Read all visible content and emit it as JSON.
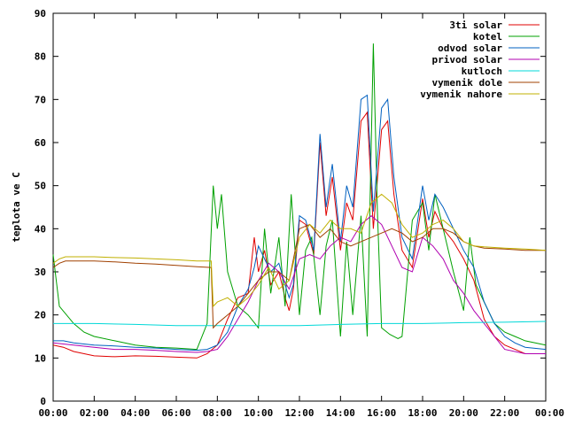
{
  "chart_data": {
    "type": "line",
    "title": "",
    "xlabel": "",
    "ylabel": "teplota ve C",
    "xlim": [
      0,
      24
    ],
    "ylim": [
      0,
      90
    ],
    "xtick_labels": [
      "00:00",
      "02:00",
      "04:00",
      "06:00",
      "08:00",
      "10:00",
      "12:00",
      "14:00",
      "16:00",
      "18:00",
      "20:00",
      "22:00",
      "00:00"
    ],
    "ytick_labels": [
      "0",
      "10",
      "20",
      "30",
      "40",
      "50",
      "60",
      "70",
      "80",
      "90"
    ],
    "grid": false,
    "legend_position": "top-right",
    "series": [
      {
        "name": "3ti solar",
        "color": "#e00000",
        "x": [
          0,
          0.5,
          1,
          2,
          3,
          4,
          5,
          6,
          7,
          7.5,
          8,
          8.5,
          9,
          9.5,
          9.8,
          10,
          10.3,
          10.6,
          11,
          11.3,
          11.5,
          11.7,
          12,
          12.3,
          12.7,
          13,
          13.3,
          13.6,
          14,
          14.3,
          14.6,
          15,
          15.3,
          15.6,
          16,
          16.3,
          16.6,
          17,
          17.5,
          18,
          18.3,
          18.6,
          19,
          19.5,
          20,
          20.5,
          21,
          21.5,
          22,
          22.5,
          23,
          24
        ],
        "y": [
          13,
          12.5,
          11.5,
          10.5,
          10.3,
          10.5,
          10.4,
          10.2,
          10,
          11,
          13,
          19,
          24,
          25,
          38,
          30,
          35,
          27,
          30,
          24,
          21,
          26,
          42,
          41,
          34,
          60,
          43,
          52,
          35,
          46,
          42,
          65,
          67,
          40,
          63,
          65,
          48,
          35,
          31,
          47,
          38,
          44,
          40,
          37,
          33,
          28,
          19,
          15,
          13,
          12,
          11,
          11
        ]
      },
      {
        "name": "kotel",
        "color": "#00a000",
        "x": [
          0,
          0.3,
          1,
          1.5,
          2,
          3,
          4,
          5,
          6,
          7,
          7.5,
          7.8,
          8,
          8.2,
          8.5,
          9,
          9.5,
          10,
          10.3,
          10.6,
          11,
          11.3,
          11.6,
          12,
          12.3,
          12.6,
          13,
          13.3,
          13.6,
          14,
          14.3,
          14.6,
          15,
          15.3,
          15.6,
          15.8,
          16,
          16.4,
          16.8,
          17,
          17.5,
          18,
          18.3,
          18.6,
          19,
          19.5,
          20,
          20.3,
          20.6,
          21,
          21.5,
          22,
          22.5,
          23,
          24
        ],
        "y": [
          34,
          22,
          18,
          16,
          15,
          14,
          13,
          12.5,
          12.3,
          12,
          18,
          50,
          40,
          48,
          30,
          22,
          20,
          17,
          40,
          25,
          38,
          22,
          48,
          20,
          35,
          38,
          20,
          36,
          42,
          15,
          37,
          20,
          43,
          15,
          83,
          44,
          17,
          15.5,
          14.5,
          15,
          42,
          46,
          35,
          48,
          40,
          30,
          21,
          38,
          27,
          23,
          18,
          16,
          15,
          14,
          13
        ]
      },
      {
        "name": "odvod solar",
        "color": "#0060c0",
        "x": [
          0,
          0.5,
          1,
          2,
          3,
          4,
          5,
          6,
          7,
          7.5,
          8,
          8.5,
          9,
          9.5,
          9.8,
          10,
          10.3,
          10.6,
          11,
          11.3,
          11.5,
          11.7,
          12,
          12.3,
          12.7,
          13,
          13.3,
          13.6,
          14,
          14.3,
          14.6,
          15,
          15.3,
          15.6,
          16,
          16.3,
          16.6,
          17,
          17.5,
          18,
          18.3,
          18.6,
          19,
          19.5,
          20,
          20.5,
          21,
          21.5,
          22,
          22.5,
          23,
          24
        ],
        "y": [
          14,
          14,
          13.5,
          13,
          12.8,
          12.5,
          12.3,
          12,
          11.8,
          12,
          13,
          16,
          22,
          26,
          31,
          36,
          33,
          30,
          32,
          27,
          24,
          27,
          43,
          42,
          35,
          62,
          45,
          55,
          37,
          50,
          45,
          70,
          71,
          44,
          68,
          70,
          52,
          38,
          33,
          50,
          42,
          48,
          45,
          40,
          35,
          31,
          23,
          18,
          15,
          13.5,
          12.5,
          12
        ]
      },
      {
        "name": "privod solar",
        "color": "#b000b0",
        "x": [
          0,
          1,
          2,
          3,
          4,
          5,
          6,
          7,
          7.5,
          8,
          8.5,
          9,
          9.5,
          10,
          10.5,
          11,
          11.5,
          12,
          12.5,
          13,
          13.5,
          14,
          14.5,
          15,
          15.5,
          16,
          16.5,
          17,
          17.5,
          18,
          18.5,
          19,
          19.5,
          20,
          20.5,
          21,
          21.5,
          22,
          23,
          24
        ],
        "y": [
          13.5,
          13,
          12.5,
          12,
          12,
          11.8,
          11.5,
          11.3,
          11.5,
          12,
          15,
          19,
          23,
          28,
          32,
          30,
          26,
          33,
          34,
          33,
          36,
          38,
          37,
          41,
          43,
          41,
          36,
          31,
          30,
          38,
          36,
          33,
          28,
          25,
          21,
          18,
          15,
          12,
          11,
          11
        ]
      },
      {
        "name": "kutloch",
        "color": "#00d8d8",
        "x": [
          0,
          2,
          4,
          6,
          8,
          10,
          12,
          14,
          16,
          18,
          20,
          22,
          24
        ],
        "y": [
          18,
          18,
          17.8,
          17.5,
          17.5,
          17.5,
          17.5,
          17.8,
          18,
          18,
          18.2,
          18.3,
          18.5
        ]
      },
      {
        "name": "vymenik dole",
        "color": "#a04000",
        "x": [
          0,
          0.3,
          0.6,
          1,
          2,
          3,
          4,
          5,
          6,
          7,
          7.7,
          7.8,
          8,
          8.5,
          9,
          9.5,
          10,
          10.5,
          11,
          11.5,
          12,
          12.5,
          13,
          13.5,
          14,
          14.5,
          15,
          15.5,
          16,
          16.5,
          17,
          17.5,
          18,
          18.5,
          19,
          19.5,
          20,
          20.5,
          21,
          22,
          23,
          24
        ],
        "y": [
          31,
          32,
          32.5,
          32.5,
          32.5,
          32.3,
          32,
          31.8,
          31.5,
          31.2,
          31,
          17,
          18,
          20,
          22,
          25,
          28,
          30,
          30,
          28,
          40,
          41,
          38,
          40,
          37,
          36,
          37,
          38,
          39,
          40,
          39,
          37,
          38,
          40,
          40,
          39,
          37,
          36,
          35.5,
          35.3,
          35,
          35
        ]
      },
      {
        "name": "vymenik nahore",
        "color": "#c0b000",
        "x": [
          0,
          0.3,
          0.6,
          1,
          2,
          3,
          4,
          5,
          6,
          7,
          7.7,
          7.8,
          8,
          8.5,
          9,
          9.5,
          10,
          10.5,
          11,
          11.5,
          12,
          12.5,
          13,
          13.5,
          14,
          14.5,
          15,
          15.5,
          16,
          16.5,
          17,
          17.5,
          18,
          18.5,
          19,
          19.5,
          20,
          20.5,
          21,
          22,
          23,
          24
        ],
        "y": [
          32,
          33,
          33.5,
          33.5,
          33.5,
          33.3,
          33.2,
          33,
          32.8,
          32.5,
          32.5,
          22,
          23,
          24,
          22,
          24,
          27,
          31,
          26,
          28,
          38,
          41,
          39,
          42,
          40,
          40,
          39,
          46,
          48,
          46,
          41,
          38,
          39,
          41,
          42,
          40,
          37,
          36,
          35.8,
          35.5,
          35.3,
          35
        ]
      }
    ]
  }
}
